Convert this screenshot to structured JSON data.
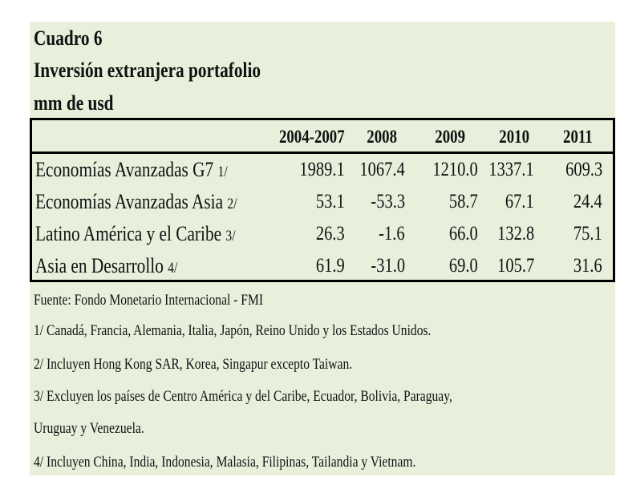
{
  "header": {
    "cuadro": "Cuadro 6",
    "title": "Inversión extranjera portafolio",
    "unit": "mm de usd"
  },
  "table": {
    "columns": [
      "2004-2007",
      "2008",
      "2009",
      "2010",
      "2011"
    ],
    "rows": [
      {
        "label": "Economías Avanzadas G7",
        "note": "1/",
        "values": [
          "1989.1",
          "1067.4",
          "1210.0",
          "1337.1",
          "609.3"
        ]
      },
      {
        "label": "Economías Avanzadas Asia",
        "note": "2/",
        "values": [
          "53.1",
          "-53.3",
          "58.7",
          "67.1",
          "24.4"
        ]
      },
      {
        "label": "Latino América y el Caribe",
        "note": "3/",
        "values": [
          "26.3",
          "-1.6",
          "66.0",
          "132.8",
          "75.1"
        ]
      },
      {
        "label": "Asia en Desarrollo",
        "note": "4/",
        "values": [
          "61.9",
          "-31.0",
          "69.0",
          "105.7",
          "31.6"
        ]
      }
    ]
  },
  "notes": [
    "Fuente: Fondo Monetario Internacional - FMI",
    "1/ Canadá, Francia, Alemania, Italia, Japón, Reino Unido y los Estados Unidos.",
    "2/ Incluyen Hong Kong SAR, Korea, Singapur excepto Taiwan.",
    "3/ Excluyen los países de Centro América y del Caribe, Ecuador, Bolivia, Paraguay,",
    "Uruguay y Venezuela.",
    "4/ Incluyen China, India, Indonesia, Malasia, Filipinas, Tailandia y Vietnam."
  ],
  "colors": {
    "background": "#e8f0dc",
    "border": "#000000"
  }
}
